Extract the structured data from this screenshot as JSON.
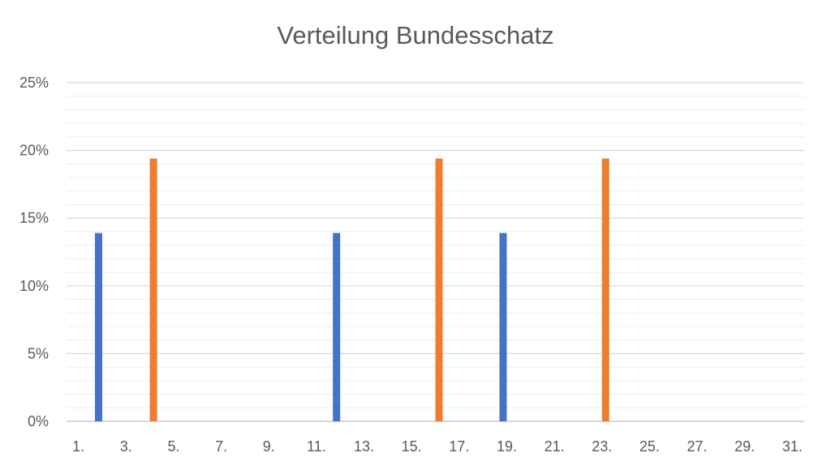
{
  "chart_data": {
    "type": "bar",
    "title": "Verteilung Bundesschatz",
    "xlabel": "",
    "ylabel": "",
    "ylim": [
      0,
      25
    ],
    "y_ticks": [
      "0%",
      "5%",
      "10%",
      "15%",
      "20%",
      "25%"
    ],
    "y_tick_values": [
      0,
      5,
      10,
      15,
      20,
      25
    ],
    "categories": [
      "1.",
      "2.",
      "3.",
      "4.",
      "5.",
      "6.",
      "7.",
      "8.",
      "9.",
      "10.",
      "11.",
      "12.",
      "13.",
      "14.",
      "15.",
      "16.",
      "17.",
      "18.",
      "19.",
      "20.",
      "21.",
      "22.",
      "23.",
      "24.",
      "25.",
      "26.",
      "27.",
      "28.",
      "29.",
      "30.",
      "31."
    ],
    "x_tick_labels": [
      "1.",
      "3.",
      "5.",
      "7.",
      "9.",
      "11.",
      "13.",
      "15.",
      "17.",
      "19.",
      "21.",
      "23.",
      "25.",
      "27.",
      "29.",
      "31."
    ],
    "series": [
      {
        "color": "#4472C4",
        "values": [
          0,
          13.9,
          0,
          0,
          0,
          0,
          0,
          0,
          0,
          0,
          0,
          13.9,
          0,
          0,
          0,
          0,
          0,
          0,
          13.9,
          0,
          0,
          0,
          0,
          0,
          0,
          0,
          0,
          0,
          0,
          0,
          0
        ]
      },
      {
        "color": "#ED7D31",
        "values": [
          0,
          0,
          0,
          19.4,
          0,
          0,
          0,
          0,
          0,
          0,
          0,
          0,
          0,
          0,
          0,
          19.4,
          0,
          0,
          0,
          0,
          0,
          0,
          19.4,
          0,
          0,
          0,
          0,
          0,
          0,
          0,
          0
        ]
      }
    ],
    "grid": true,
    "minor_grid": true,
    "legend": "none"
  }
}
